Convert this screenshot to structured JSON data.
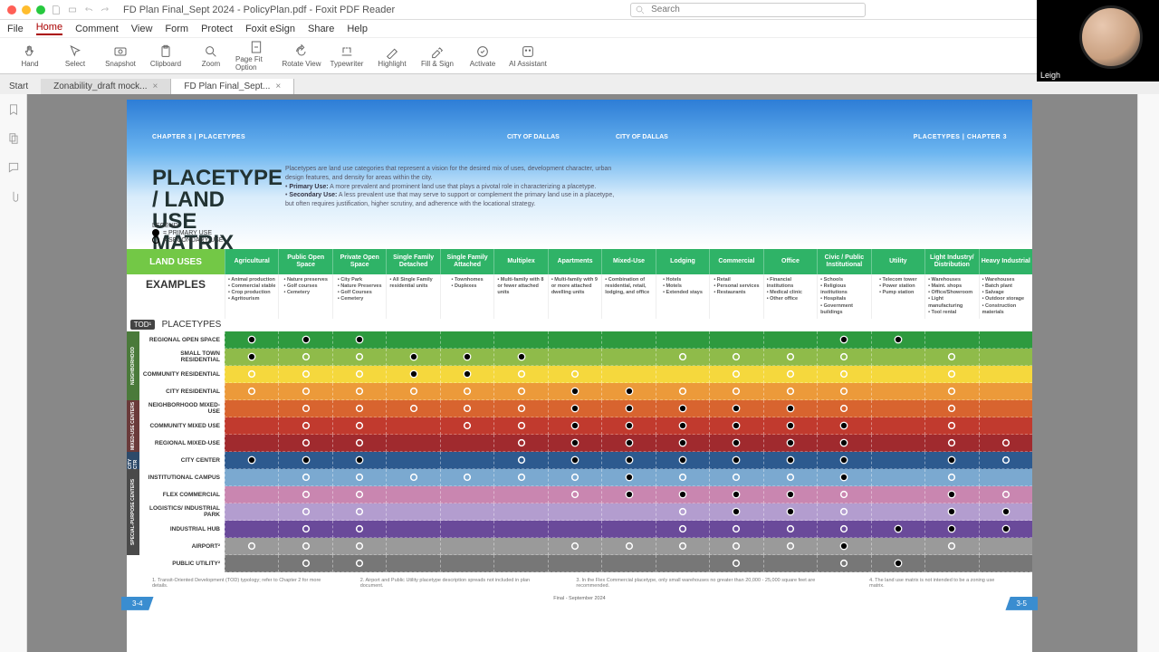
{
  "window": {
    "title": "FD Plan Final_Sept 2024 - PolicyPlan.pdf - Foxit PDF Reader",
    "search_placeholder": "Search"
  },
  "menu": [
    "File",
    "Home",
    "Comment",
    "View",
    "Form",
    "Protect",
    "Foxit eSign",
    "Share",
    "Help"
  ],
  "toolbar": [
    {
      "id": "hand",
      "label": "Hand"
    },
    {
      "id": "select",
      "label": "Select"
    },
    {
      "id": "snapshot",
      "label": "Snapshot"
    },
    {
      "id": "clipboard",
      "label": "Clipboard"
    },
    {
      "id": "zoom",
      "label": "Zoom"
    },
    {
      "id": "pagefit",
      "label": "Page Fit Option"
    },
    {
      "id": "rotate",
      "label": "Rotate View"
    },
    {
      "id": "typewriter",
      "label": "Typewriter"
    },
    {
      "id": "highlight",
      "label": "Highlight"
    },
    {
      "id": "fillsign",
      "label": "Fill & Sign"
    },
    {
      "id": "activate",
      "label": "Activate"
    },
    {
      "id": "ai",
      "label": "AI Assistant"
    }
  ],
  "tabs": [
    {
      "label": "Start",
      "active": false,
      "start": true
    },
    {
      "label": "Zonability_draft mock...",
      "active": false
    },
    {
      "label": "FD Plan Final_Sept...",
      "active": true
    }
  ],
  "doc": {
    "chapter_l": "CHAPTER 3  |  PLACETYPES",
    "chapter_r": "PLACETYPES  |  CHAPTER 3",
    "city_l": "CITY OF DALLAS",
    "city_r": "CITY OF DALLAS",
    "title": "PLACETYPE / LAND USE MATRIX",
    "intro": "Placetypes are land use categories that represent a vision for the desired mix of uses, development character, urban design features, and density for areas within the city.",
    "primary_label": "Primary Use:",
    "primary_txt": "A more prevalent and prominent land use that plays a pivotal role in characterizing a placetype.",
    "secondary_label": "Secondary Use:",
    "secondary_txt": "A less prevalent use that may serve to support or complement the primary land use in a placetype, but often requires justification, higher scrutiny, and adherence with the locational strategy.",
    "legend_t": "LEGEND:",
    "legend_p": "= PRIMARY USE",
    "legend_s": "= SECONDARY USE",
    "landuses_label": "LAND USES",
    "examples_label": "EXAMPLES",
    "tod_label": "TOD¹",
    "placetypes_label": "PLACETYPES",
    "footer_mid": "Final - September 2024",
    "page_l": "3-4",
    "page_r": "3-5"
  },
  "columns": [
    "Agricultural",
    "Public Open Space",
    "Private Open Space",
    "Single Family Detached",
    "Single Family Attached",
    "Multiplex",
    "Apartments",
    "Mixed-Use",
    "Lodging",
    "Commercial",
    "Office",
    "Civic / Public Institutional",
    "Utility",
    "Light Industry/ Distribution",
    "Heavy Industrial"
  ],
  "examples": [
    "• Animal production\n• Commercial stable\n• Crop production\n• Agritourism",
    "• Nature preserves\n• Golf courses\n• Cemetery",
    "• City Park\n• Nature Preserves\n• Golf Courses\n• Cemetery",
    "• All Single Family residential units",
    "• Townhomes\n• Duplexes",
    "• Multi-family with 8 or fewer attached units",
    "• Multi-family with 9 or more attached dwelling units",
    "• Combination of residential, retail, lodging, and office",
    "• Hotels\n• Motels\n• Extended stays",
    "• Retail\n• Personal services\n• Restaurants",
    "• Financial institutions\n• Medical clinic\n• Other office",
    "• Schools\n• Religious institutions\n• Hospitals\n• Government buildings",
    "• Telecom tower\n• Power station\n• Pump station",
    "• Warehouses\n• Maint. shops\n• Office/Showroom\n• Light manufacturing\n• Tool rental",
    "• Warehouses\n• Batch plant\n• Salvage\n• Outdoor storage\n• Construction materials"
  ],
  "rows": [
    {
      "group": "NEIGHBORHOOD",
      "label": "REGIONAL OPEN SPACE",
      "bg": "#2e9a3f",
      "cells": [
        "P",
        "P",
        "P",
        "",
        "",
        "",
        "",
        "",
        "",
        "",
        "",
        "P",
        "P",
        "",
        ""
      ]
    },
    {
      "group": "NEIGHBORHOOD",
      "label": "SMALL TOWN RESIDENTIAL",
      "bg": "#8fbb4a",
      "cells": [
        "P",
        "S",
        "S",
        "P",
        "P",
        "P",
        "",
        "",
        "S",
        "S",
        "S",
        "S",
        "",
        "S",
        ""
      ]
    },
    {
      "group": "NEIGHBORHOOD",
      "label": "COMMUNITY RESIDENTIAL",
      "bg": "#f5d83d",
      "cells": [
        "S",
        "S",
        "S",
        "P",
        "P",
        "S",
        "S",
        "",
        "",
        "S",
        "S",
        "S",
        "",
        "S",
        ""
      ]
    },
    {
      "group": "NEIGHBORHOOD",
      "label": "CITY RESIDENTIAL",
      "bg": "#ec9a3a",
      "cells": [
        "S",
        "S",
        "S",
        "S",
        "S",
        "S",
        "P",
        "P",
        "S",
        "S",
        "S",
        "S",
        "",
        "S",
        ""
      ]
    },
    {
      "group": "MIXED-USE CENTERS",
      "label": "NEIGHBORHOOD MIXED-USE",
      "bg": "#d8642f",
      "cells": [
        "",
        "S",
        "S",
        "S",
        "S",
        "S",
        "P",
        "P",
        "P",
        "P",
        "P",
        "S",
        "",
        "S",
        ""
      ]
    },
    {
      "group": "MIXED-USE CENTERS",
      "label": "COMMUNITY MIXED USE",
      "bg": "#c13a2e",
      "cells": [
        "",
        "S",
        "S",
        "",
        "S",
        "S",
        "P",
        "P",
        "P",
        "P",
        "P",
        "P",
        "",
        "S",
        ""
      ]
    },
    {
      "group": "MIXED-USE CENTERS",
      "label": "REGIONAL MIXED-USE",
      "bg": "#a02a2e",
      "cells": [
        "",
        "S",
        "S",
        "",
        "",
        "S",
        "P",
        "P",
        "P",
        "P",
        "P",
        "P",
        "",
        "S",
        "S"
      ]
    },
    {
      "group": "CITY CTR",
      "label": "CITY CENTER",
      "bg": "#2d5a8f",
      "cells": [
        "P",
        "P",
        "P",
        "",
        "",
        "S",
        "P",
        "P",
        "P",
        "P",
        "P",
        "P",
        "",
        "P",
        "S"
      ]
    },
    {
      "group": "SPECIAL-PURPOSE CENTERS",
      "label": "INSTITUTIONAL CAMPUS",
      "bg": "#7ba9d0",
      "cells": [
        "",
        "S",
        "S",
        "S",
        "S",
        "S",
        "S",
        "P",
        "S",
        "S",
        "S",
        "P",
        "",
        "S",
        ""
      ]
    },
    {
      "group": "SPECIAL-PURPOSE CENTERS",
      "label": "FLEX COMMERCIAL",
      "bg": "#c986b0",
      "cells": [
        "",
        "S",
        "S",
        "",
        "",
        "",
        "S",
        "P",
        "P",
        "P",
        "P",
        "S",
        "",
        "P",
        "S"
      ]
    },
    {
      "group": "SPECIAL-PURPOSE CENTERS",
      "label": "LOGISTICS/ INDUSTRIAL PARK",
      "bg": "#b39dcf",
      "cells": [
        "",
        "S",
        "S",
        "",
        "",
        "",
        "",
        "",
        "S",
        "P",
        "P",
        "S",
        "",
        "P",
        "P"
      ]
    },
    {
      "group": "SPECIAL-PURPOSE CENTERS",
      "label": "INDUSTRIAL HUB",
      "bg": "#6a4a9a",
      "cells": [
        "",
        "S",
        "S",
        "",
        "",
        "",
        "",
        "",
        "S",
        "S",
        "S",
        "S",
        "P",
        "P",
        "P"
      ]
    },
    {
      "group": "SPECIAL-PURPOSE CENTERS",
      "label": "AIRPORT²",
      "bg": "#9a9a9a",
      "cells": [
        "S",
        "S",
        "S",
        "",
        "",
        "",
        "S",
        "S",
        "S",
        "S",
        "S",
        "P",
        "",
        "S",
        ""
      ]
    },
    {
      "group": "",
      "label": "PUBLIC UTILITY²",
      "bg": "#777",
      "cells": [
        "",
        "S",
        "S",
        "",
        "",
        "",
        "",
        "",
        "",
        "S",
        "",
        "S",
        "P",
        "",
        ""
      ]
    }
  ],
  "group_colors": {
    "NEIGHBORHOOD": "#4a7a3a",
    "MIXED-USE CENTERS": "#6a3a3a",
    "CITY CTR": "#2d4a6a",
    "SPECIAL-PURPOSE CENTERS": "#4a4a4a"
  },
  "video_name": "Leigh"
}
